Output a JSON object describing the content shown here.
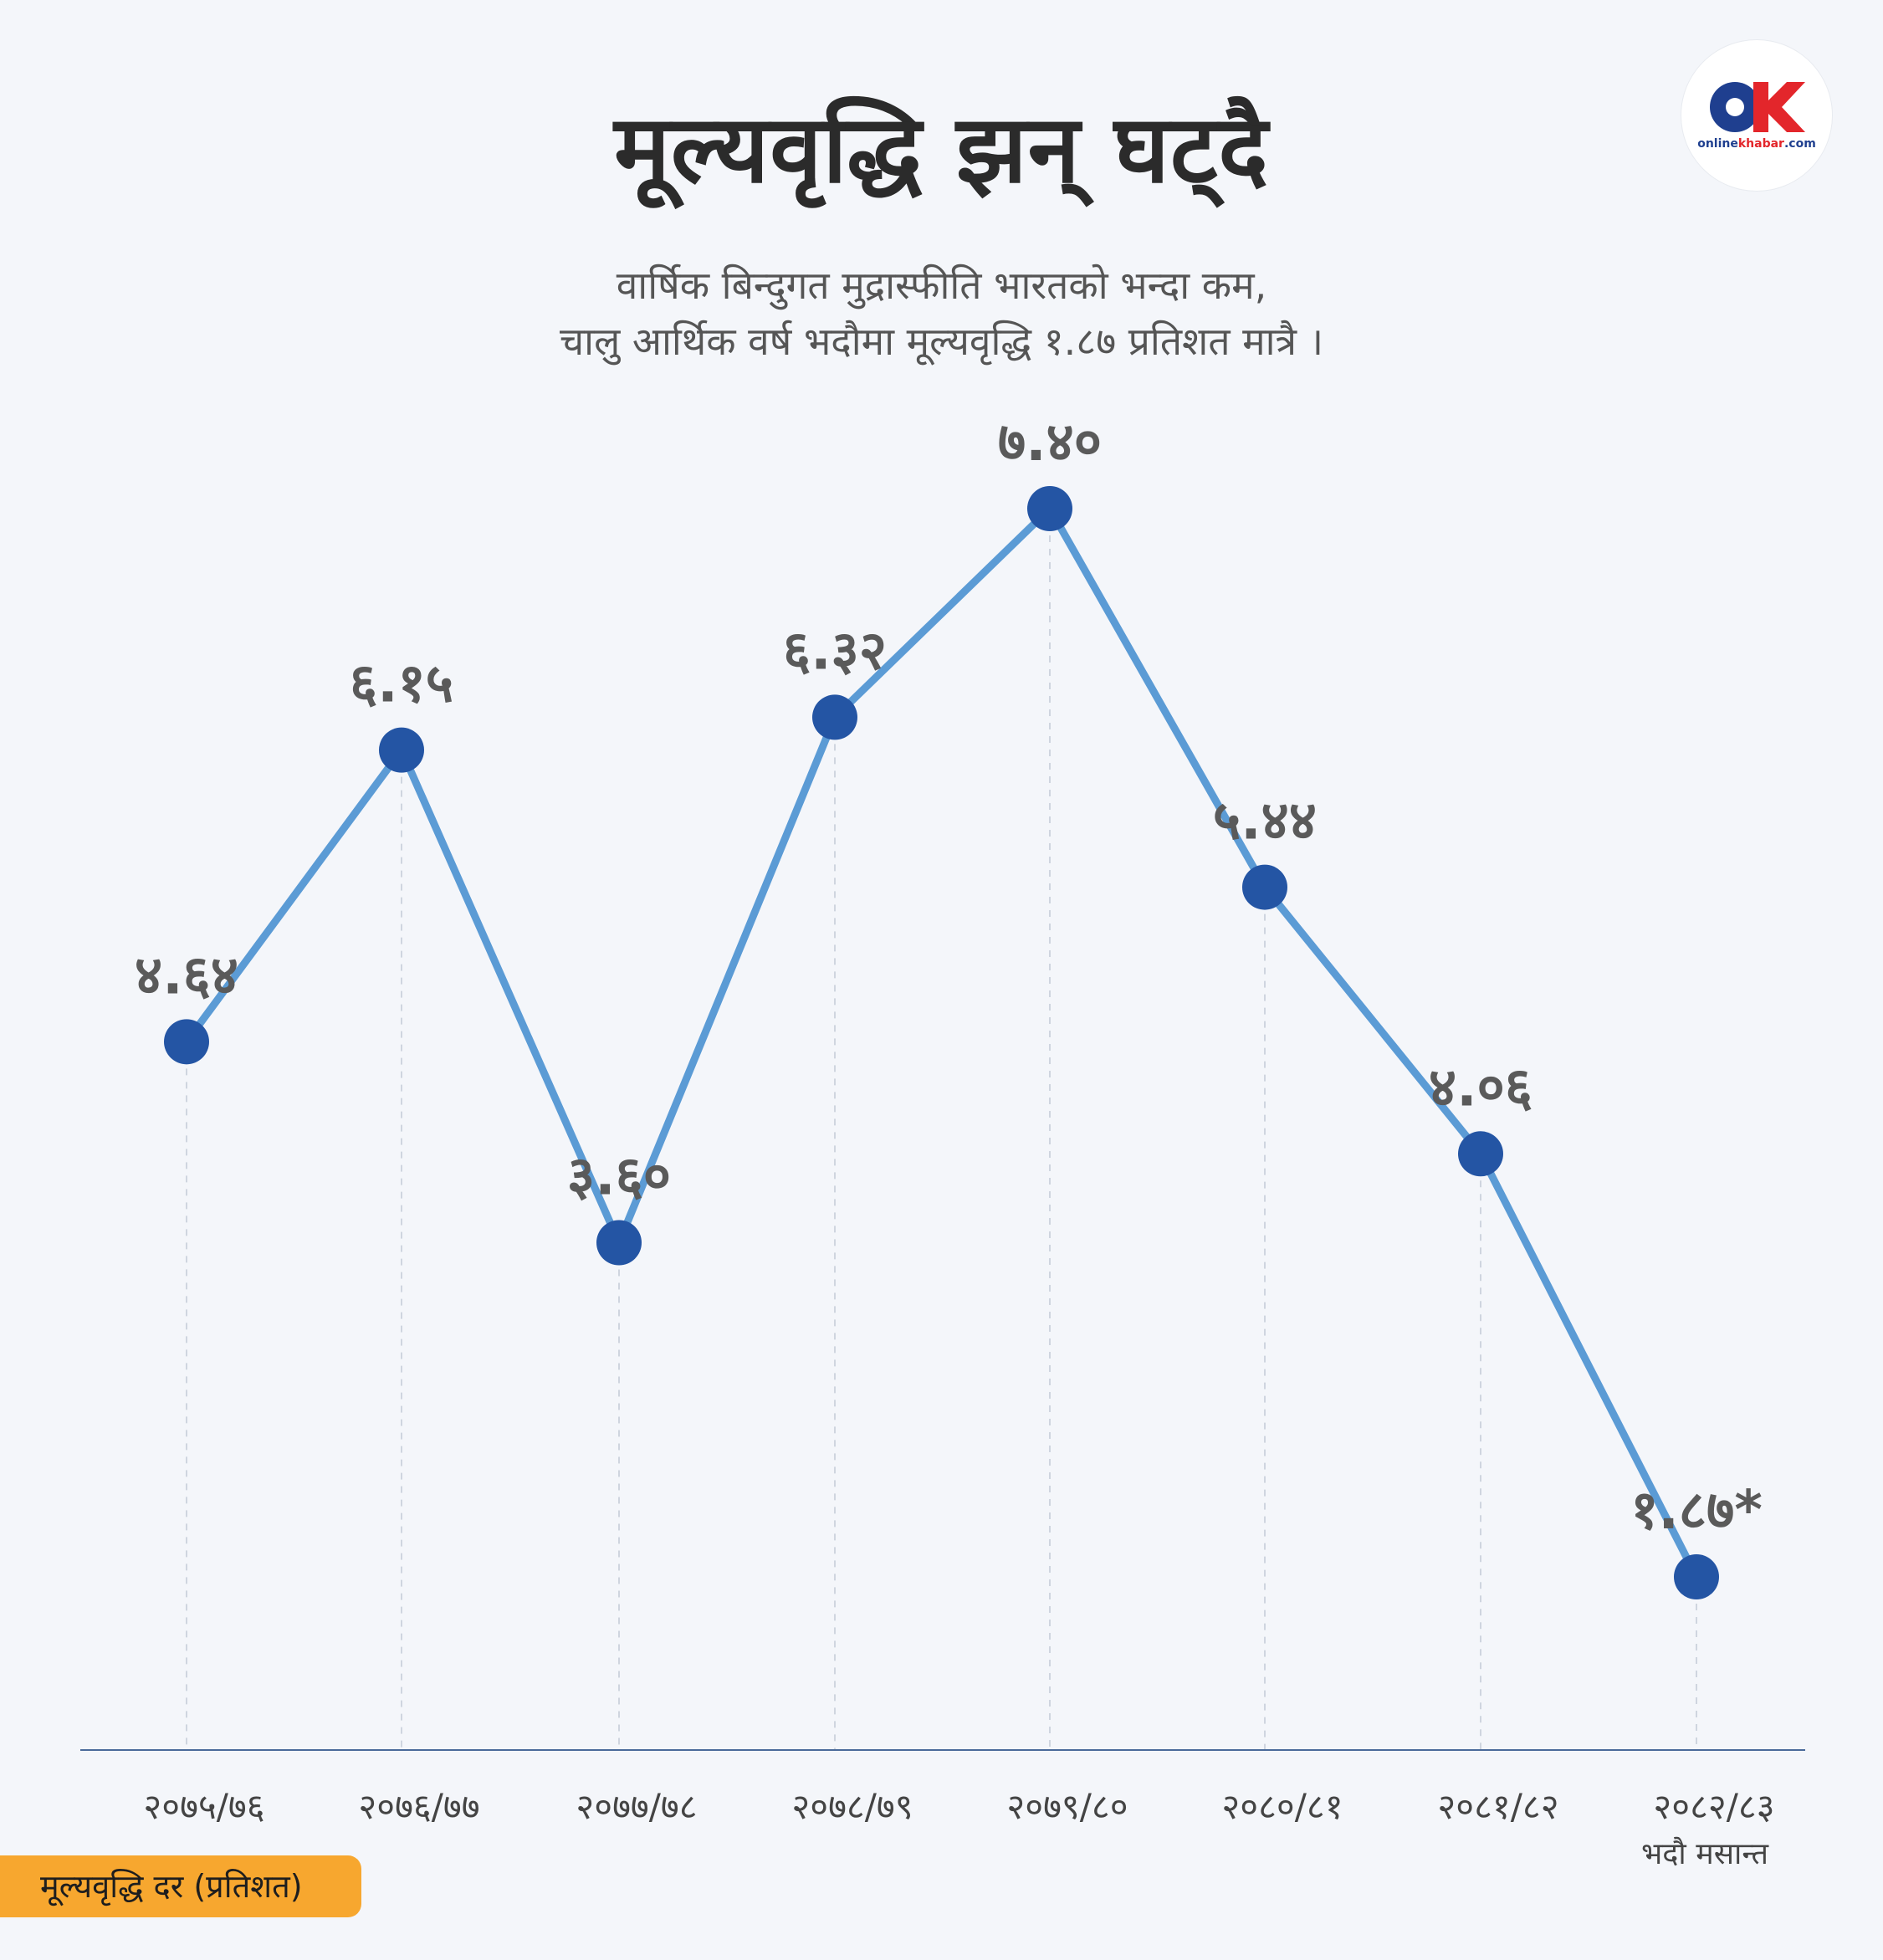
{
  "header": {
    "title": "मूल्यवृद्धि झन् घट्दै",
    "subtitle_line1": "वार्षिक बिन्दुगत मुद्रास्फीति भारतको भन्दा कम,",
    "subtitle_line2": "चालु आर्थिक वर्ष भदौमा मूल्यवृद्धि १.८७ प्रतिशत मात्रै ।"
  },
  "logo": {
    "letters": "OK",
    "name_part1": "online",
    "name_part2": "khabar",
    "name_part3": ".com"
  },
  "legend_badge": "मूल्यवृद्धि दर (प्रतिशत)",
  "colors": {
    "line": "#5b9bd5",
    "point": "#2455a4",
    "label": "#5a5a5a",
    "axis": "#4a6a9a",
    "badge": "#f7a72f"
  },
  "chart_data": {
    "type": "line",
    "categories": [
      "२०७५/७६",
      "२०७६/७७",
      "२०७७/७८",
      "२०७८/७९",
      "२०७९/८०",
      "२०८०/८१",
      "२०८१/८२",
      "२०८२/८३"
    ],
    "category_sublabels": [
      "",
      "",
      "",
      "",
      "",
      "",
      "",
      "भदौ मसान्त"
    ],
    "values": [
      4.64,
      6.15,
      3.6,
      6.32,
      7.4,
      5.44,
      4.06,
      1.87
    ],
    "data_labels": [
      "४.६४",
      "६.१५",
      "३.६०",
      "६.३२",
      "७.४०",
      "५.४४",
      "४.०६",
      "१.८७*"
    ],
    "ylim": [
      0,
      8.4
    ],
    "grid": "vertical dashed guides",
    "legend": "none"
  }
}
